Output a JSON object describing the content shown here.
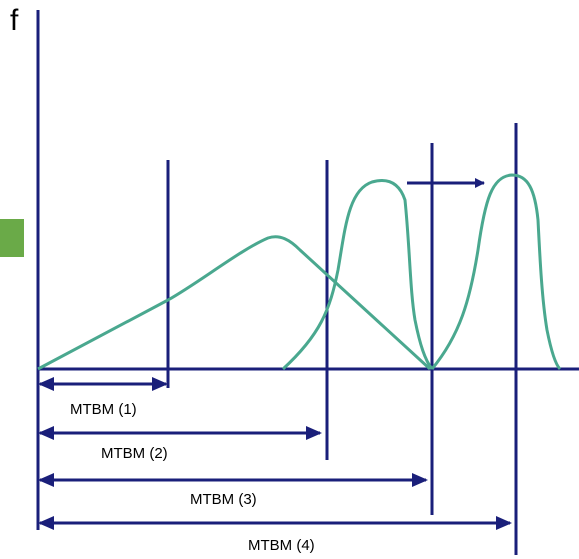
{
  "axis": {
    "y_label": "f"
  },
  "mtbm_labels": [
    "MTBM (1)",
    "MTBM (2)",
    "MTBM (3)",
    "MTBM (4)"
  ],
  "colors": {
    "axis": "#1a1f7a",
    "curve": "#4aa88f",
    "marker": "#6aaa48"
  }
}
